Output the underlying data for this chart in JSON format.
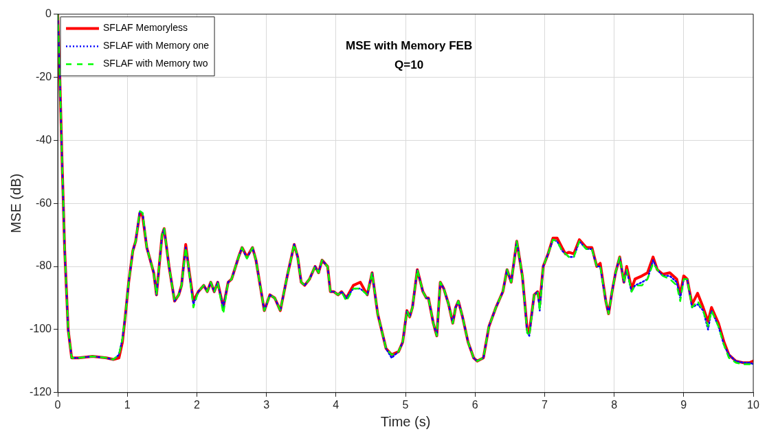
{
  "chart_data": {
    "type": "line",
    "title": "MSE with Memory FEB",
    "subtitle": "Q=10",
    "xlabel": "Time (s)",
    "ylabel": "MSE (dB)",
    "x": [
      0,
      0.03,
      0.06,
      0.1,
      0.15,
      0.2,
      0.3,
      0.5,
      0.7,
      0.8,
      0.88,
      0.93,
      0.97,
      1.02,
      1.08,
      1.12,
      1.18,
      1.22,
      1.28,
      1.38,
      1.42,
      1.5,
      1.53,
      1.6,
      1.68,
      1.74,
      1.78,
      1.84,
      1.88,
      1.95,
      2.02,
      2.1,
      2.15,
      2.2,
      2.25,
      2.3,
      2.38,
      2.45,
      2.5,
      2.6,
      2.65,
      2.72,
      2.8,
      2.85,
      2.97,
      3.05,
      3.12,
      3.2,
      3.3,
      3.4,
      3.45,
      3.5,
      3.55,
      3.62,
      3.7,
      3.75,
      3.8,
      3.88,
      3.92,
      3.97,
      4.03,
      4.08,
      4.15,
      4.25,
      4.35,
      4.45,
      4.52,
      4.6,
      4.72,
      4.8,
      4.9,
      4.96,
      5.02,
      5.06,
      5.1,
      5.17,
      5.25,
      5.3,
      5.33,
      5.4,
      5.45,
      5.5,
      5.55,
      5.62,
      5.68,
      5.72,
      5.76,
      5.82,
      5.9,
      5.98,
      6.03,
      6.12,
      6.2,
      6.3,
      6.4,
      6.46,
      6.52,
      6.6,
      6.68,
      6.75,
      6.78,
      6.85,
      6.9,
      6.93,
      6.98,
      7.05,
      7.12,
      7.18,
      7.25,
      7.3,
      7.35,
      7.42,
      7.5,
      7.6,
      7.68,
      7.75,
      7.8,
      7.88,
      7.92,
      7.97,
      8.02,
      8.08,
      8.14,
      8.18,
      8.25,
      8.3,
      8.4,
      8.48,
      8.56,
      8.62,
      8.7,
      8.8,
      8.9,
      8.95,
      9.0,
      9.05,
      9.12,
      9.2,
      9.28,
      9.35,
      9.4,
      9.5,
      9.58,
      9.65,
      9.75,
      9.85,
      9.95,
      10
    ],
    "series": [
      {
        "name": "SFLAF Memoryless",
        "color": "#ff0000",
        "line_style": "solid",
        "values": [
          0,
          -20,
          -45,
          -75,
          -100,
          -109,
          -109,
          -108.5,
          -109,
          -109.5,
          -109,
          -104,
          -96,
          -85,
          -75,
          -72,
          -63,
          -64,
          -74,
          -82,
          -89,
          -70,
          -68,
          -80,
          -91,
          -89,
          -86,
          -73,
          -80,
          -91,
          -88,
          -86,
          -88,
          -85,
          -88,
          -85,
          -93,
          -85,
          -84,
          -77,
          -74,
          -77,
          -74,
          -78,
          -94,
          -89,
          -90,
          -94,
          -83,
          -73,
          -77,
          -85,
          -86,
          -84,
          -80,
          -82,
          -78,
          -80,
          -88,
          -88,
          -89,
          -88,
          -90,
          -86,
          -85,
          -89,
          -82,
          -95,
          -106,
          -108,
          -107,
          -104,
          -94,
          -96,
          -93,
          -81,
          -88,
          -90,
          -90,
          -98,
          -102,
          -85,
          -87,
          -92,
          -98,
          -93,
          -91,
          -96,
          -104,
          -109,
          -110,
          -109,
          -99,
          -93,
          -88,
          -81,
          -85,
          -72,
          -83,
          -100,
          -101,
          -89,
          -88,
          -92,
          -80,
          -76,
          -71,
          -71,
          -74,
          -76,
          -75.5,
          -76,
          -71.5,
          -74,
          -74,
          -80,
          -79,
          -91,
          -95,
          -88,
          -82,
          -77,
          -85,
          -80,
          -87,
          -84,
          -83,
          -82,
          -77,
          -81,
          -82.5,
          -82,
          -84,
          -89,
          -83,
          -84,
          -92,
          -88.5,
          -93,
          -97.5,
          -93,
          -98,
          -104,
          -108,
          -110,
          -110.5,
          -110.5,
          -110
        ]
      },
      {
        "name": "SFLAF with Memory one",
        "color": "#0000ff",
        "line_style": "dotted",
        "values": [
          0,
          -20,
          -45,
          -75,
          -100,
          -109,
          -109,
          -108.5,
          -109,
          -109.5,
          -108,
          -103,
          -96,
          -85,
          -75,
          -72,
          -62.5,
          -63,
          -74,
          -82,
          -89,
          -70,
          -68,
          -80,
          -91,
          -89,
          -86,
          -74,
          -80,
          -92,
          -88,
          -86,
          -88,
          -85,
          -88,
          -85,
          -93,
          -85,
          -84,
          -77,
          -74,
          -77.5,
          -74,
          -78,
          -94,
          -89,
          -90,
          -94,
          -83,
          -73,
          -77,
          -85,
          -86,
          -84,
          -80,
          -82,
          -78,
          -80,
          -88,
          -88,
          -89,
          -88,
          -90,
          -87,
          -87,
          -89,
          -82,
          -95,
          -106,
          -109,
          -107,
          -104,
          -94,
          -96,
          -93,
          -81,
          -88,
          -90,
          -90,
          -98,
          -102,
          -85,
          -87,
          -92,
          -98,
          -93,
          -91,
          -96,
          -104,
          -109,
          -110,
          -109,
          -99,
          -93,
          -88,
          -81,
          -85,
          -72,
          -83,
          -101,
          -102,
          -89,
          -88,
          -94,
          -80,
          -76,
          -71.5,
          -72,
          -75,
          -76,
          -77,
          -77,
          -72,
          -74.5,
          -74.5,
          -80,
          -80,
          -91,
          -95,
          -88,
          -82,
          -77,
          -85,
          -81,
          -88,
          -86,
          -85,
          -84,
          -78,
          -81,
          -83,
          -83,
          -85,
          -90,
          -84,
          -84,
          -93,
          -92,
          -94,
          -100,
          -94,
          -99,
          -105,
          -108,
          -110,
          -110.5,
          -110.5,
          -111
        ]
      },
      {
        "name": "SFLAF with Memory two",
        "color": "#00ff00",
        "line_style": "dashed",
        "values": [
          0,
          -20,
          -45,
          -75,
          -100,
          -109,
          -109,
          -108.5,
          -109,
          -109.5,
          -108,
          -103,
          -96,
          -85,
          -75,
          -72,
          -62.5,
          -63,
          -74,
          -82,
          -89,
          -70,
          -68,
          -80,
          -91,
          -89,
          -86,
          -74,
          -80,
          -93,
          -88,
          -86,
          -88,
          -85,
          -88,
          -85,
          -95,
          -85,
          -84,
          -77,
          -74,
          -77.5,
          -74,
          -78,
          -94,
          -89,
          -90,
          -94,
          -83,
          -73,
          -77,
          -85,
          -86,
          -84,
          -80,
          -82,
          -78,
          -80,
          -88,
          -88,
          -89,
          -88,
          -91,
          -87,
          -87,
          -89,
          -82,
          -95,
          -106,
          -108,
          -107,
          -104,
          -94,
          -96,
          -93,
          -81,
          -88,
          -90,
          -90,
          -98,
          -102,
          -85,
          -87,
          -92,
          -98,
          -93,
          -91,
          -96,
          -104,
          -109,
          -110,
          -109,
          -99,
          -93,
          -88,
          -81,
          -85,
          -72,
          -83,
          -101,
          -102,
          -89,
          -88,
          -94,
          -80,
          -76,
          -71.5,
          -72,
          -75,
          -76,
          -77,
          -77,
          -72,
          -74.5,
          -74.5,
          -80,
          -80,
          -91,
          -95,
          -88,
          -82,
          -77,
          -85,
          -81,
          -88,
          -86,
          -86,
          -84,
          -79,
          -81,
          -83,
          -84,
          -86,
          -91,
          -84,
          -84,
          -93,
          -91,
          -94,
          -99,
          -94,
          -99,
          -105,
          -109,
          -110.5,
          -111,
          -111,
          -111
        ]
      }
    ],
    "xlim": [
      0,
      10
    ],
    "xticks": [
      0,
      1,
      2,
      3,
      4,
      5,
      6,
      7,
      8,
      9,
      10
    ],
    "ylim": [
      -120,
      0
    ],
    "yticks": [
      -120,
      -100,
      -80,
      -60,
      -40,
      -20,
      0
    ],
    "grid": true,
    "legend": "top left",
    "marker": "none"
  }
}
